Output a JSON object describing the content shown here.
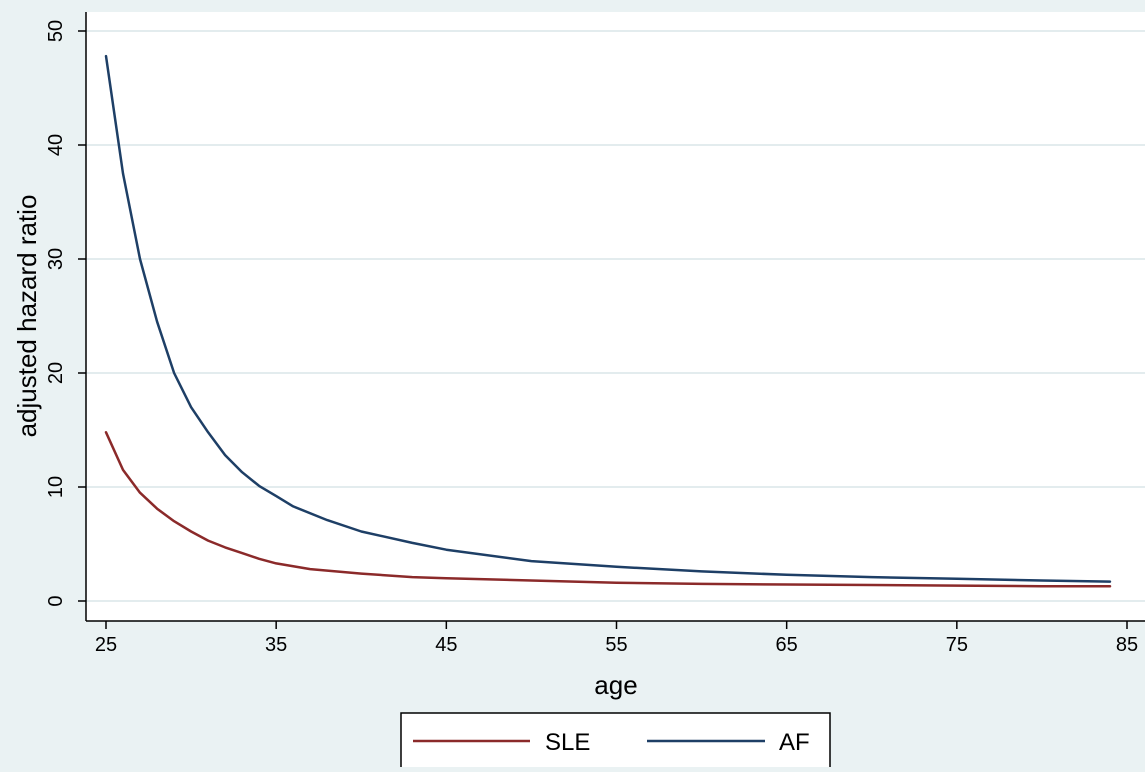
{
  "chart_data": {
    "type": "line",
    "title": "",
    "xlabel": "age",
    "ylabel": "adjusted hazard ratio",
    "xlim": [
      25,
      85
    ],
    "ylim": [
      0,
      50
    ],
    "x_ticks": [
      25,
      35,
      45,
      55,
      65,
      75,
      85
    ],
    "y_ticks": [
      0,
      10,
      20,
      30,
      40,
      50
    ],
    "grid": "horizontal",
    "legend_position": "bottom",
    "series": [
      {
        "name": "SLE",
        "color": "#8b2a2a",
        "x": [
          25,
          26,
          27,
          28,
          29,
          30,
          31,
          32,
          33,
          34,
          35,
          37,
          40,
          43,
          45,
          50,
          55,
          60,
          65,
          70,
          75,
          80,
          84
        ],
        "y": [
          14.8,
          11.5,
          9.5,
          8.1,
          7.0,
          6.1,
          5.3,
          4.7,
          4.2,
          3.7,
          3.3,
          2.8,
          2.4,
          2.1,
          2.0,
          1.8,
          1.6,
          1.5,
          1.45,
          1.4,
          1.35,
          1.3,
          1.3
        ]
      },
      {
        "name": "AF",
        "color": "#1e3f66",
        "x": [
          25,
          26,
          27,
          28,
          29,
          30,
          31,
          32,
          33,
          34,
          35,
          36,
          38,
          40,
          43,
          45,
          50,
          55,
          60,
          65,
          70,
          75,
          80,
          84
        ],
        "y": [
          47.8,
          37.5,
          30.0,
          24.5,
          20.0,
          17.0,
          14.8,
          12.8,
          11.3,
          10.1,
          9.2,
          8.3,
          7.1,
          6.1,
          5.1,
          4.5,
          3.5,
          3.0,
          2.6,
          2.3,
          2.1,
          1.95,
          1.8,
          1.7
        ]
      }
    ]
  }
}
